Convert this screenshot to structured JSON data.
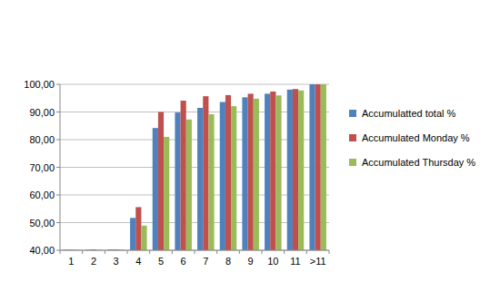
{
  "chart_data": {
    "type": "bar",
    "categories": [
      "1",
      "2",
      "3",
      "4",
      "5",
      "6",
      "7",
      "8",
      "9",
      "10",
      "11",
      ">11"
    ],
    "series": [
      {
        "name": "Accumulatted total %",
        "color": "#4f81bd",
        "values": [
          40.2,
          40.2,
          40.3,
          51.7,
          84.2,
          89.8,
          91.5,
          93.6,
          95.3,
          96.6,
          98.1,
          100
        ]
      },
      {
        "name": "Accumulated Monday %",
        "color": "#c0504d",
        "values": [
          40.2,
          40.3,
          40.3,
          55.6,
          90.0,
          94.1,
          95.7,
          96.1,
          96.6,
          97.4,
          98.3,
          100
        ]
      },
      {
        "name": "Accumulated Thursday %",
        "color": "#9bbb59",
        "values": [
          40.2,
          40.2,
          40.3,
          48.9,
          81.0,
          87.3,
          89.2,
          92.1,
          94.8,
          96.0,
          97.8,
          100
        ]
      }
    ],
    "ylim": [
      40,
      100
    ],
    "yticks": [
      {
        "value": 40,
        "label": "40,00"
      },
      {
        "value": 50,
        "label": "50,00"
      },
      {
        "value": 60,
        "label": "60,00"
      },
      {
        "value": 70,
        "label": "70,00"
      },
      {
        "value": 80,
        "label": "80,00"
      },
      {
        "value": 90,
        "label": "90,00"
      },
      {
        "value": 100,
        "label": "100,00"
      }
    ],
    "grid": true,
    "legend": "right"
  }
}
